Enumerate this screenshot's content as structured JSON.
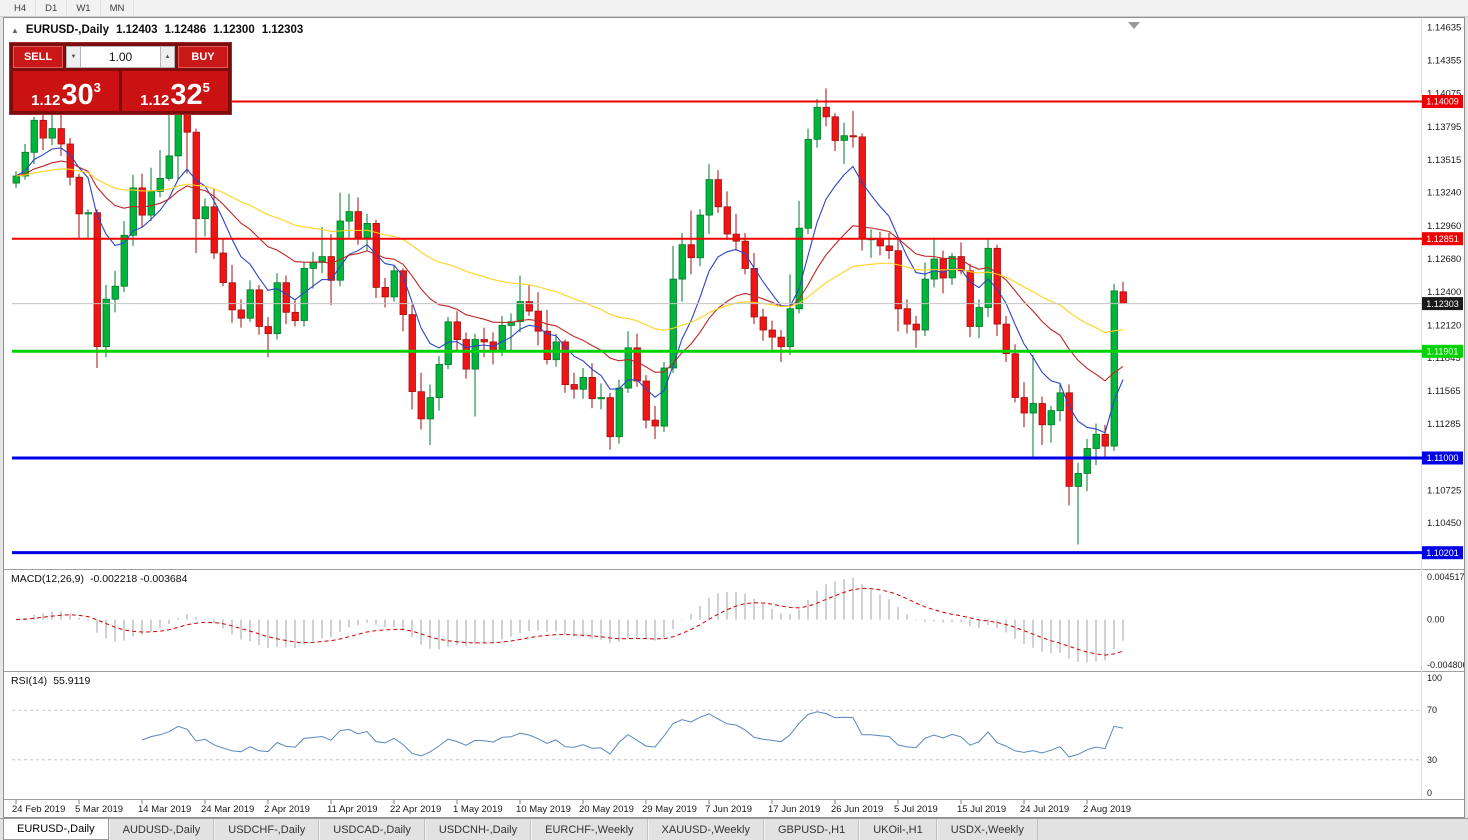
{
  "toolbar": {
    "timeframes": [
      "H4",
      "D1",
      "W1",
      "MN"
    ]
  },
  "icons": {
    "collapse_arrow": "▲",
    "volume_down": "▼",
    "volume_up": "▲"
  },
  "chart": {
    "header": {
      "symbol": "EURUSD-,Daily",
      "open": "1.12403",
      "high": "1.12486",
      "low": "1.12300",
      "close": "1.12303"
    },
    "trade_panel": {
      "sell_label": "SELL",
      "buy_label": "BUY",
      "volume": "1.00",
      "sell_price": {
        "prefix": "1.12",
        "big": "30",
        "sup": "3"
      },
      "buy_price": {
        "prefix": "1.12",
        "big": "32",
        "sup": "5"
      }
    }
  },
  "indicators": {
    "macd": {
      "label": "MACD(12,26,9)",
      "values": "-0.002218 -0.003684",
      "scale_top": "0.004517",
      "scale_mid": "0.00",
      "scale_bottom": "-0.004806"
    },
    "rsi": {
      "label": "RSI(14)",
      "value": "55.9119",
      "scale": [
        "100",
        "70",
        "30",
        "0"
      ],
      "levels": [
        70,
        30
      ]
    }
  },
  "tabs": [
    "EURUSD-,Daily",
    "AUDUSD-,Daily",
    "USDCHF-,Daily",
    "USDCAD-,Daily",
    "USDCNH-,Daily",
    "EURCHF-,Weekly",
    "XAUUSD-,Weekly",
    "GBPUSD-,H1",
    "UKOil-,H1",
    "USDX-,Weekly"
  ],
  "chart_data": {
    "type": "candlestick",
    "symbol": "EURUSD-",
    "timeframe": "Daily",
    "ylim": [
      1.1008,
      1.1468
    ],
    "y_ticks": [
      "1.14635",
      "1.14355",
      "1.14075",
      "1.13795",
      "1.13515",
      "1.13240",
      "1.12960",
      "1.12680",
      "1.12400",
      "1.12120",
      "1.11845",
      "1.11565",
      "1.11285",
      "1.10725",
      "1.10450"
    ],
    "x_labels": [
      {
        "i": 0,
        "t": "24 Feb 2019"
      },
      {
        "i": 7,
        "t": "5 Mar 2019"
      },
      {
        "i": 14,
        "t": "14 Mar 2019"
      },
      {
        "i": 21,
        "t": "24 Mar 2019"
      },
      {
        "i": 28,
        "t": "2 Apr 2019"
      },
      {
        "i": 35,
        "t": "11 Apr 2019"
      },
      {
        "i": 42,
        "t": "22 Apr 2019"
      },
      {
        "i": 49,
        "t": "1 May 2019"
      },
      {
        "i": 56,
        "t": "10 May 2019"
      },
      {
        "i": 63,
        "t": "20 May 2019"
      },
      {
        "i": 70,
        "t": "29 May 2019"
      },
      {
        "i": 77,
        "t": "7 Jun 2019"
      },
      {
        "i": 84,
        "t": "17 Jun 2019"
      },
      {
        "i": 91,
        "t": "26 Jun 2019"
      },
      {
        "i": 98,
        "t": "5 Jul 2019"
      },
      {
        "i": 105,
        "t": "15 Jul 2019"
      },
      {
        "i": 112,
        "t": "24 Jul 2019"
      },
      {
        "i": 119,
        "t": "2 Aug 2019"
      }
    ],
    "hlines": [
      {
        "price": 1.14009,
        "color": "#ee0000",
        "width": 2,
        "label": "1.14009"
      },
      {
        "price": 1.12851,
        "color": "#ee0000",
        "width": 2,
        "label": "1.12851"
      },
      {
        "price": 1.11901,
        "color": "#00d300",
        "width": 3,
        "label": "1.11901"
      },
      {
        "price": 1.11,
        "color": "#0000e8",
        "width": 3,
        "label": "1.11000"
      },
      {
        "price": 1.10201,
        "color": "#0000e8",
        "width": 3,
        "label": "1.10201"
      }
    ],
    "current_price": {
      "price": 1.12303,
      "label": "1.12303",
      "color": "#1a1a1a"
    },
    "moving_averages": [
      {
        "period": 8,
        "color": "#2d43c8"
      },
      {
        "period": 21,
        "color": "#c02626"
      },
      {
        "period": 50,
        "color": "#ffd21e"
      }
    ],
    "macd_params": [
      12,
      26,
      9
    ],
    "rsi_period": 14,
    "colors": {
      "up": "#00b43c",
      "up_stroke": "#007a28",
      "down": "#ef1515",
      "down_stroke": "#a60f0f",
      "macd_hist": "#a3a3a3",
      "macd_signal": "#d40000",
      "rsi": "#5a87c0"
    },
    "ohlc": [
      [
        1.1332,
        1.1342,
        1.1328,
        1.1338
      ],
      [
        1.1338,
        1.1365,
        1.1335,
        1.1358
      ],
      [
        1.1358,
        1.1388,
        1.1348,
        1.1385
      ],
      [
        1.1385,
        1.1391,
        1.136,
        1.137
      ],
      [
        1.137,
        1.1395,
        1.1364,
        1.1378
      ],
      [
        1.1378,
        1.139,
        1.1355,
        1.1365
      ],
      [
        1.1365,
        1.137,
        1.133,
        1.1337
      ],
      [
        1.1337,
        1.134,
        1.1285,
        1.1306
      ],
      [
        1.1306,
        1.131,
        1.1285,
        1.1307
      ],
      [
        1.1307,
        1.131,
        1.1176,
        1.1194
      ],
      [
        1.1194,
        1.1246,
        1.1185,
        1.1234
      ],
      [
        1.1234,
        1.1258,
        1.1223,
        1.1245
      ],
      [
        1.1245,
        1.13,
        1.124,
        1.1288
      ],
      [
        1.1288,
        1.1339,
        1.1279,
        1.1328
      ],
      [
        1.1328,
        1.134,
        1.1295,
        1.1305
      ],
      [
        1.1305,
        1.1345,
        1.13,
        1.1325
      ],
      [
        1.1325,
        1.136,
        1.132,
        1.1336
      ],
      [
        1.1336,
        1.1396,
        1.1334,
        1.1355
      ],
      [
        1.1355,
        1.14,
        1.1335,
        1.139
      ],
      [
        1.139,
        1.1392,
        1.134,
        1.1375
      ],
      [
        1.1375,
        1.1378,
        1.1273,
        1.1302
      ],
      [
        1.1302,
        1.1319,
        1.1287,
        1.1312
      ],
      [
        1.1312,
        1.1327,
        1.1268,
        1.1273
      ],
      [
        1.1273,
        1.1285,
        1.1245,
        1.1248
      ],
      [
        1.1248,
        1.1263,
        1.1214,
        1.1225
      ],
      [
        1.1225,
        1.1234,
        1.121,
        1.1218
      ],
      [
        1.1218,
        1.125,
        1.1215,
        1.1242
      ],
      [
        1.1242,
        1.1246,
        1.1204,
        1.1211
      ],
      [
        1.1211,
        1.1219,
        1.1185,
        1.1205
      ],
      [
        1.1205,
        1.1256,
        1.12,
        1.1248
      ],
      [
        1.1248,
        1.1254,
        1.1213,
        1.1223
      ],
      [
        1.1223,
        1.1234,
        1.1211,
        1.1216
      ],
      [
        1.1216,
        1.1265,
        1.1211,
        1.126
      ],
      [
        1.126,
        1.1274,
        1.1243,
        1.1265
      ],
      [
        1.1265,
        1.1295,
        1.1256,
        1.127
      ],
      [
        1.127,
        1.1289,
        1.1229,
        1.125
      ],
      [
        1.125,
        1.1324,
        1.1245,
        1.13
      ],
      [
        1.13,
        1.1323,
        1.1286,
        1.1308
      ],
      [
        1.1308,
        1.132,
        1.128,
        1.1286
      ],
      [
        1.1286,
        1.1306,
        1.1275,
        1.1298
      ],
      [
        1.1298,
        1.1301,
        1.1235,
        1.1244
      ],
      [
        1.1244,
        1.1252,
        1.1227,
        1.1236
      ],
      [
        1.1236,
        1.1263,
        1.1232,
        1.1258
      ],
      [
        1.1258,
        1.126,
        1.1207,
        1.1221
      ],
      [
        1.1221,
        1.1229,
        1.1141,
        1.1156
      ],
      [
        1.1156,
        1.1172,
        1.1124,
        1.1133
      ],
      [
        1.1133,
        1.1162,
        1.1111,
        1.1151
      ],
      [
        1.1151,
        1.1186,
        1.114,
        1.1179
      ],
      [
        1.1179,
        1.1219,
        1.1175,
        1.1215
      ],
      [
        1.1215,
        1.1224,
        1.1191,
        1.12
      ],
      [
        1.12,
        1.1206,
        1.1167,
        1.1175
      ],
      [
        1.1175,
        1.1205,
        1.1135,
        1.12
      ],
      [
        1.12,
        1.121,
        1.1185,
        1.1198
      ],
      [
        1.1198,
        1.1206,
        1.1179,
        1.119
      ],
      [
        1.119,
        1.122,
        1.1186,
        1.1212
      ],
      [
        1.1212,
        1.1222,
        1.119,
        1.1215
      ],
      [
        1.1215,
        1.1254,
        1.1206,
        1.1232
      ],
      [
        1.1232,
        1.1246,
        1.122,
        1.1224
      ],
      [
        1.1224,
        1.124,
        1.1195,
        1.1207
      ],
      [
        1.1207,
        1.1225,
        1.1179,
        1.1183
      ],
      [
        1.1183,
        1.1205,
        1.1177,
        1.1198
      ],
      [
        1.1198,
        1.12,
        1.1155,
        1.1162
      ],
      [
        1.1162,
        1.1172,
        1.115,
        1.1158
      ],
      [
        1.1158,
        1.1176,
        1.115,
        1.1168
      ],
      [
        1.1168,
        1.118,
        1.1142,
        1.115
      ],
      [
        1.115,
        1.1163,
        1.1141,
        1.1151
      ],
      [
        1.1151,
        1.1155,
        1.1107,
        1.1118
      ],
      [
        1.1118,
        1.1166,
        1.1112,
        1.1159
      ],
      [
        1.1159,
        1.1207,
        1.1155,
        1.1193
      ],
      [
        1.1193,
        1.1205,
        1.116,
        1.1165
      ],
      [
        1.1165,
        1.117,
        1.1125,
        1.1132
      ],
      [
        1.1132,
        1.1144,
        1.1116,
        1.1127
      ],
      [
        1.1127,
        1.1181,
        1.1122,
        1.1176
      ],
      [
        1.1176,
        1.1279,
        1.1172,
        1.1251
      ],
      [
        1.1251,
        1.129,
        1.1232,
        1.128
      ],
      [
        1.128,
        1.1309,
        1.1255,
        1.1269
      ],
      [
        1.1269,
        1.131,
        1.1262,
        1.1305
      ],
      [
        1.1305,
        1.1348,
        1.1289,
        1.1335
      ],
      [
        1.1335,
        1.1343,
        1.1307,
        1.1312
      ],
      [
        1.1312,
        1.1325,
        1.1284,
        1.1289
      ],
      [
        1.1289,
        1.1306,
        1.1275,
        1.1283
      ],
      [
        1.1283,
        1.129,
        1.1255,
        1.126
      ],
      [
        1.126,
        1.1273,
        1.1213,
        1.1219
      ],
      [
        1.1219,
        1.1226,
        1.1199,
        1.1208
      ],
      [
        1.1208,
        1.1216,
        1.119,
        1.1202
      ],
      [
        1.1202,
        1.1208,
        1.1181,
        1.1194
      ],
      [
        1.1194,
        1.1255,
        1.1187,
        1.1226
      ],
      [
        1.1226,
        1.1317,
        1.1222,
        1.1294
      ],
      [
        1.1294,
        1.1378,
        1.1289,
        1.1369
      ],
      [
        1.1369,
        1.1403,
        1.1362,
        1.1396
      ],
      [
        1.1396,
        1.1412,
        1.138,
        1.1388
      ],
      [
        1.1388,
        1.1391,
        1.1359,
        1.1368
      ],
      [
        1.1368,
        1.1383,
        1.1348,
        1.1372
      ],
      [
        1.1372,
        1.1393,
        1.1362,
        1.1371
      ],
      [
        1.1371,
        1.1374,
        1.1275,
        1.1285
      ],
      [
        1.1285,
        1.1293,
        1.1269,
        1.1285
      ],
      [
        1.1285,
        1.1291,
        1.1271,
        1.1279
      ],
      [
        1.1279,
        1.129,
        1.1268,
        1.1275
      ],
      [
        1.1275,
        1.1286,
        1.1207,
        1.1226
      ],
      [
        1.1226,
        1.1234,
        1.1205,
        1.1213
      ],
      [
        1.1213,
        1.122,
        1.1193,
        1.1208
      ],
      [
        1.1208,
        1.1265,
        1.1203,
        1.1251
      ],
      [
        1.1251,
        1.1286,
        1.1244,
        1.1268
      ],
      [
        1.1268,
        1.1275,
        1.1239,
        1.1252
      ],
      [
        1.1252,
        1.1273,
        1.1246,
        1.127
      ],
      [
        1.127,
        1.1282,
        1.1255,
        1.1258
      ],
      [
        1.1258,
        1.1264,
        1.1202,
        1.1211
      ],
      [
        1.1211,
        1.1234,
        1.1201,
        1.1227
      ],
      [
        1.1227,
        1.1285,
        1.1219,
        1.1277
      ],
      [
        1.1277,
        1.128,
        1.1203,
        1.1213
      ],
      [
        1.1213,
        1.122,
        1.1181,
        1.1188
      ],
      [
        1.1188,
        1.1196,
        1.1147,
        1.1151
      ],
      [
        1.1151,
        1.1164,
        1.1126,
        1.1138
      ],
      [
        1.1138,
        1.1187,
        1.1101,
        1.1146
      ],
      [
        1.1146,
        1.1152,
        1.1111,
        1.1128
      ],
      [
        1.1128,
        1.1144,
        1.1113,
        1.114
      ],
      [
        1.114,
        1.1162,
        1.1131,
        1.1155
      ],
      [
        1.1155,
        1.1162,
        1.106,
        1.1076
      ],
      [
        1.1076,
        1.1096,
        1.1027,
        1.1087
      ],
      [
        1.1087,
        1.1116,
        1.1072,
        1.1108
      ],
      [
        1.1108,
        1.1129,
        1.1094,
        1.112
      ],
      [
        1.112,
        1.1128,
        1.11,
        1.111
      ],
      [
        1.111,
        1.1247,
        1.1106,
        1.1241
      ],
      [
        1.12403,
        1.12486,
        1.123,
        1.12303
      ]
    ]
  }
}
